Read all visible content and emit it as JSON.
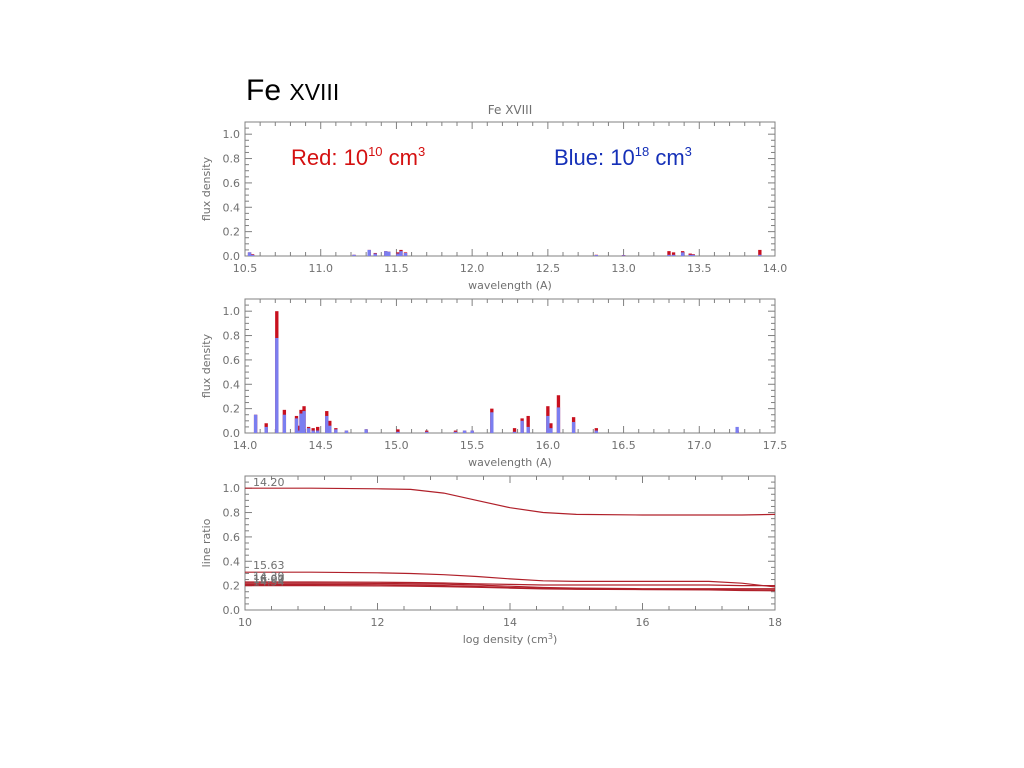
{
  "slide": {
    "title_prefix": "Fe ",
    "title_ion": "XVIII"
  },
  "legend": {
    "red_label": "Red: 10",
    "red_exp": "10",
    "red_unit": " cm",
    "red_unit_exp": "3",
    "blue_label": "Blue: 10",
    "blue_exp": "18",
    "blue_unit": " cm",
    "blue_unit_exp": "3"
  },
  "colors": {
    "red": "#c8101e",
    "blue": "#7b7ef0",
    "curve": "#b0202a",
    "axis": "#808080"
  },
  "chart_data": [
    {
      "type": "bar",
      "title": "Fe  XVIII",
      "xlabel": "wavelength (A)",
      "ylabel": "flux density",
      "xlim": [
        10.5,
        14.0
      ],
      "ylim": [
        0.0,
        1.1
      ],
      "xticks": [
        10.5,
        11.0,
        11.5,
        12.0,
        12.5,
        13.0,
        13.5,
        14.0
      ],
      "xtick_labels": [
        "10.5",
        "11.0",
        "11.5",
        "12.0",
        "12.5",
        "13.0",
        "13.5",
        "14.0"
      ],
      "yticks": [
        0.0,
        0.2,
        0.4,
        0.6,
        0.8,
        1.0
      ],
      "ytick_labels": [
        "0.0",
        "0.2",
        "0.4",
        "0.6",
        "0.8",
        "1.0"
      ],
      "series": [
        {
          "name": "Red: 10^10 cm^3",
          "points": [
            {
              "x": 10.53,
              "y": 0.03
            },
            {
              "x": 10.55,
              "y": 0.015
            },
            {
              "x": 11.22,
              "y": 0.01
            },
            {
              "x": 11.32,
              "y": 0.05
            },
            {
              "x": 11.36,
              "y": 0.025
            },
            {
              "x": 11.43,
              "y": 0.04
            },
            {
              "x": 11.45,
              "y": 0.035
            },
            {
              "x": 11.51,
              "y": 0.03
            },
            {
              "x": 11.53,
              "y": 0.05
            },
            {
              "x": 11.56,
              "y": 0.03
            },
            {
              "x": 12.82,
              "y": 0.01
            },
            {
              "x": 13.0,
              "y": 0.008
            },
            {
              "x": 13.3,
              "y": 0.04
            },
            {
              "x": 13.33,
              "y": 0.03
            },
            {
              "x": 13.39,
              "y": 0.04
            },
            {
              "x": 13.44,
              "y": 0.02
            },
            {
              "x": 13.46,
              "y": 0.015
            },
            {
              "x": 13.9,
              "y": 0.05
            }
          ]
        },
        {
          "name": "Blue: 10^18 cm^3",
          "points": [
            {
              "x": 10.53,
              "y": 0.03
            },
            {
              "x": 10.55,
              "y": 0.01
            },
            {
              "x": 11.22,
              "y": 0.01
            },
            {
              "x": 11.32,
              "y": 0.05
            },
            {
              "x": 11.36,
              "y": 0.02
            },
            {
              "x": 11.43,
              "y": 0.04
            },
            {
              "x": 11.45,
              "y": 0.035
            },
            {
              "x": 11.51,
              "y": 0.02
            },
            {
              "x": 11.53,
              "y": 0.04
            },
            {
              "x": 11.56,
              "y": 0.025
            },
            {
              "x": 12.82,
              "y": 0.008
            },
            {
              "x": 13.0,
              "y": 0.006
            },
            {
              "x": 13.3,
              "y": 0.01
            },
            {
              "x": 13.33,
              "y": 0.01
            },
            {
              "x": 13.39,
              "y": 0.03
            },
            {
              "x": 13.44,
              "y": 0.01
            },
            {
              "x": 13.46,
              "y": 0.01
            },
            {
              "x": 13.9,
              "y": 0.01
            }
          ]
        }
      ]
    },
    {
      "type": "bar",
      "title": "",
      "xlabel": "wavelength (A)",
      "ylabel": "flux density",
      "xlim": [
        14.0,
        17.5
      ],
      "ylim": [
        0.0,
        1.1
      ],
      "xticks": [
        14.0,
        14.5,
        15.0,
        15.5,
        16.0,
        16.5,
        17.0,
        17.5
      ],
      "xtick_labels": [
        "14.0",
        "14.5",
        "15.0",
        "15.5",
        "16.0",
        "16.5",
        "17.0",
        "17.5"
      ],
      "yticks": [
        0.0,
        0.2,
        0.4,
        0.6,
        0.8,
        1.0
      ],
      "ytick_labels": [
        "0.0",
        "0.2",
        "0.4",
        "0.6",
        "0.8",
        "1.0"
      ],
      "series": [
        {
          "name": "Red: 10^10 cm^3",
          "points": [
            {
              "x": 14.07,
              "y": 0.15
            },
            {
              "x": 14.14,
              "y": 0.08
            },
            {
              "x": 14.21,
              "y": 1.0
            },
            {
              "x": 14.26,
              "y": 0.19
            },
            {
              "x": 14.34,
              "y": 0.14
            },
            {
              "x": 14.36,
              "y": 0.06
            },
            {
              "x": 14.37,
              "y": 0.19
            },
            {
              "x": 14.39,
              "y": 0.22
            },
            {
              "x": 14.42,
              "y": 0.05
            },
            {
              "x": 14.45,
              "y": 0.04
            },
            {
              "x": 14.48,
              "y": 0.05
            },
            {
              "x": 14.54,
              "y": 0.18
            },
            {
              "x": 14.56,
              "y": 0.1
            },
            {
              "x": 14.6,
              "y": 0.04
            },
            {
              "x": 14.67,
              "y": 0.02
            },
            {
              "x": 14.8,
              "y": 0.03
            },
            {
              "x": 15.01,
              "y": 0.03
            },
            {
              "x": 15.2,
              "y": 0.02
            },
            {
              "x": 15.39,
              "y": 0.02
            },
            {
              "x": 15.45,
              "y": 0.02
            },
            {
              "x": 15.5,
              "y": 0.02
            },
            {
              "x": 15.63,
              "y": 0.2
            },
            {
              "x": 15.78,
              "y": 0.04
            },
            {
              "x": 15.83,
              "y": 0.12
            },
            {
              "x": 15.87,
              "y": 0.14
            },
            {
              "x": 16.0,
              "y": 0.22
            },
            {
              "x": 16.02,
              "y": 0.08
            },
            {
              "x": 16.07,
              "y": 0.31
            },
            {
              "x": 16.17,
              "y": 0.13
            },
            {
              "x": 16.32,
              "y": 0.04
            },
            {
              "x": 17.25,
              "y": 0.02
            }
          ]
        },
        {
          "name": "Blue: 10^18 cm^3",
          "points": [
            {
              "x": 14.07,
              "y": 0.15
            },
            {
              "x": 14.14,
              "y": 0.05
            },
            {
              "x": 14.21,
              "y": 0.78
            },
            {
              "x": 14.26,
              "y": 0.15
            },
            {
              "x": 14.34,
              "y": 0.12
            },
            {
              "x": 14.36,
              "y": 0.02
            },
            {
              "x": 14.37,
              "y": 0.16
            },
            {
              "x": 14.39,
              "y": 0.18
            },
            {
              "x": 14.42,
              "y": 0.04
            },
            {
              "x": 14.45,
              "y": 0.02
            },
            {
              "x": 14.48,
              "y": 0.02
            },
            {
              "x": 14.54,
              "y": 0.14
            },
            {
              "x": 14.56,
              "y": 0.06
            },
            {
              "x": 14.6,
              "y": 0.03
            },
            {
              "x": 14.67,
              "y": 0.02
            },
            {
              "x": 14.8,
              "y": 0.03
            },
            {
              "x": 15.01,
              "y": 0.01
            },
            {
              "x": 15.2,
              "y": 0.01
            },
            {
              "x": 15.39,
              "y": 0.01
            },
            {
              "x": 15.45,
              "y": 0.02
            },
            {
              "x": 15.5,
              "y": 0.02
            },
            {
              "x": 15.63,
              "y": 0.17
            },
            {
              "x": 15.78,
              "y": 0.01
            },
            {
              "x": 15.83,
              "y": 0.1
            },
            {
              "x": 15.87,
              "y": 0.05
            },
            {
              "x": 16.0,
              "y": 0.14
            },
            {
              "x": 16.02,
              "y": 0.04
            },
            {
              "x": 16.07,
              "y": 0.21
            },
            {
              "x": 16.17,
              "y": 0.09
            },
            {
              "x": 16.32,
              "y": 0.02
            },
            {
              "x": 17.25,
              "y": 0.05
            }
          ]
        }
      ]
    },
    {
      "type": "line",
      "title": "",
      "xlabel": "log density (cm",
      "xlabel_exp": "3",
      "xlabel_close": ")",
      "ylabel": "line ratio",
      "xlim": [
        10,
        18
      ],
      "ylim": [
        0.0,
        1.1
      ],
      "xticks": [
        10,
        12,
        14,
        16,
        18
      ],
      "xtick_labels": [
        "10",
        "12",
        "14",
        "16",
        "18"
      ],
      "yticks": [
        0.0,
        0.2,
        0.4,
        0.6,
        0.8,
        1.0
      ],
      "ytick_labels": [
        "0.0",
        "0.2",
        "0.4",
        "0.6",
        "0.8",
        "1.0"
      ],
      "line_labels": [
        "14.20",
        "15.63",
        "16.07",
        "14.39",
        "14.54",
        "16.00"
      ],
      "x": [
        10,
        11,
        12,
        12.5,
        13,
        13.5,
        14,
        14.5,
        15,
        16,
        17,
        17.5,
        18
      ],
      "series": [
        {
          "name": "14.20",
          "values": [
            1.0,
            1.0,
            0.995,
            0.99,
            0.96,
            0.9,
            0.84,
            0.8,
            0.785,
            0.78,
            0.78,
            0.78,
            0.785
          ]
        },
        {
          "name": "15.63",
          "values": [
            0.31,
            0.31,
            0.305,
            0.3,
            0.29,
            0.275,
            0.255,
            0.24,
            0.235,
            0.235,
            0.235,
            0.22,
            0.19
          ]
        },
        {
          "name": "16.07",
          "values": [
            0.23,
            0.23,
            0.228,
            0.226,
            0.222,
            0.215,
            0.21,
            0.205,
            0.205,
            0.205,
            0.205,
            0.2,
            0.2
          ]
        },
        {
          "name": "14.39",
          "values": [
            0.22,
            0.22,
            0.218,
            0.216,
            0.213,
            0.205,
            0.195,
            0.185,
            0.18,
            0.175,
            0.175,
            0.175,
            0.175
          ]
        },
        {
          "name": "14.54",
          "values": [
            0.21,
            0.21,
            0.208,
            0.205,
            0.2,
            0.193,
            0.185,
            0.178,
            0.172,
            0.168,
            0.165,
            0.16,
            0.158
          ]
        },
        {
          "name": "16.00",
          "values": [
            0.2,
            0.2,
            0.198,
            0.196,
            0.192,
            0.186,
            0.18,
            0.173,
            0.17,
            0.168,
            0.168,
            0.167,
            0.165
          ]
        }
      ]
    }
  ]
}
